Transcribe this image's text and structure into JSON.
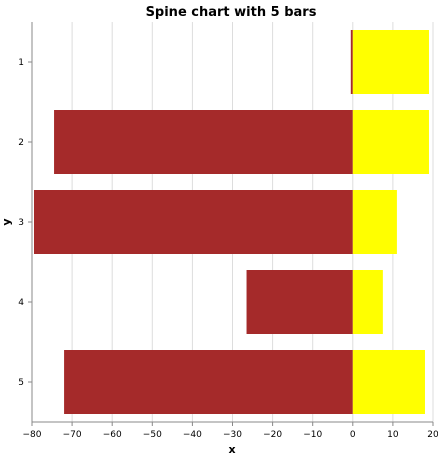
{
  "chart_data": {
    "type": "bar",
    "orientation": "horizontal",
    "stacking": "diverging",
    "title": "Spine chart with 5 bars",
    "xlabel": "x",
    "ylabel": "y",
    "xlim": [
      -80,
      20
    ],
    "x_ticks": [
      -80,
      -70,
      -60,
      -50,
      -40,
      -30,
      -20,
      -10,
      0,
      10,
      20
    ],
    "x_tick_labels": [
      "−80",
      "−70",
      "−60",
      "−50",
      "−40",
      "−30",
      "−20",
      "−10",
      "0",
      "10",
      "20"
    ],
    "categories": [
      "1",
      "2",
      "3",
      "4",
      "5"
    ],
    "series": [
      {
        "color": "#a52a2a",
        "values": [
          -0.5,
          -74.5,
          -79.5,
          -26.5,
          -72
        ]
      },
      {
        "color": "#ffff00",
        "values": [
          19,
          19,
          11,
          7.5,
          18
        ]
      }
    ],
    "grid": true,
    "legend": "none"
  }
}
